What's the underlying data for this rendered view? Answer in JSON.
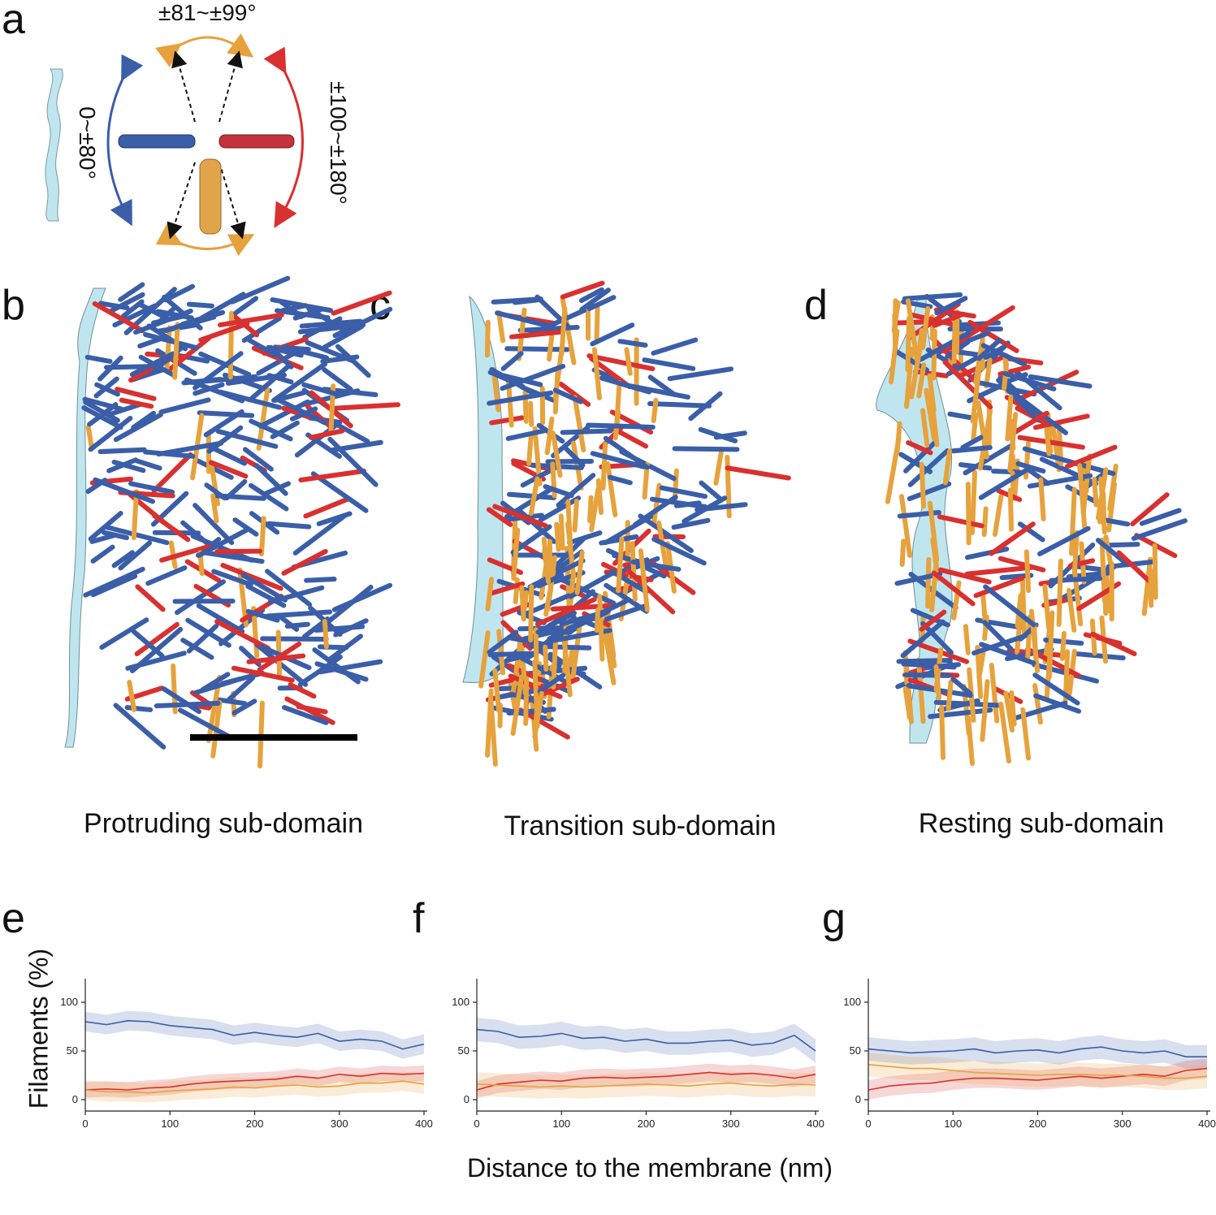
{
  "panels": {
    "a": "a",
    "b": "b",
    "c": "c",
    "d": "d",
    "e": "e",
    "f": "f",
    "g": "g"
  },
  "diagram": {
    "angle_top": "±81~±99°",
    "angle_left": "0~±80°",
    "angle_right": "±100~±180°"
  },
  "subdomains": {
    "b_title": "Protruding sub-domain",
    "c_title": "Transition sub-domain",
    "d_title": "Resting sub-domain"
  },
  "colors": {
    "blue": "#3a5ea8",
    "red": "#d93030",
    "orange": "#e6a23c",
    "membrane": "#bfe6ef"
  },
  "axes": {
    "y_title": "Filaments (%)",
    "x_title": "Distance to the membrane (nm)",
    "x_ticks": [
      "0",
      "100",
      "200",
      "300",
      "400"
    ],
    "y_ticks": [
      "0",
      "50",
      "100"
    ]
  },
  "chart_data": [
    {
      "type": "line",
      "panel": "e",
      "x": [
        0,
        25,
        50,
        75,
        100,
        125,
        150,
        175,
        200,
        225,
        250,
        275,
        300,
        325,
        350,
        375,
        400
      ],
      "xlim": [
        0,
        400
      ],
      "ylim": [
        -5,
        120
      ],
      "series": [
        {
          "color": "blue",
          "values": [
            80,
            77,
            81,
            80,
            76,
            74,
            72,
            66,
            69,
            66,
            64,
            68,
            60,
            62,
            60,
            52,
            57
          ],
          "band": 10
        },
        {
          "color": "red",
          "values": [
            10,
            11,
            10,
            12,
            13,
            16,
            18,
            19,
            20,
            21,
            24,
            22,
            26,
            24,
            27,
            26,
            27
          ],
          "band": 8
        },
        {
          "color": "orange",
          "values": [
            10,
            8,
            8,
            7,
            9,
            10,
            11,
            13,
            12,
            14,
            15,
            13,
            14,
            17,
            17,
            19,
            16
          ],
          "band": 10
        }
      ]
    },
    {
      "type": "line",
      "panel": "f",
      "x": [
        0,
        25,
        50,
        75,
        100,
        125,
        150,
        175,
        200,
        225,
        250,
        275,
        300,
        325,
        350,
        375,
        400
      ],
      "xlim": [
        0,
        400
      ],
      "ylim": [
        -5,
        120
      ],
      "series": [
        {
          "color": "blue",
          "values": [
            72,
            70,
            64,
            65,
            68,
            63,
            64,
            60,
            62,
            58,
            58,
            60,
            61,
            56,
            58,
            66,
            50
          ],
          "band": 12
        },
        {
          "color": "red",
          "values": [
            10,
            16,
            18,
            20,
            19,
            22,
            23,
            22,
            23,
            24,
            26,
            28,
            26,
            27,
            25,
            22,
            26
          ],
          "band": 9
        },
        {
          "color": "orange",
          "values": [
            16,
            15,
            14,
            13,
            14,
            13,
            14,
            15,
            16,
            15,
            14,
            16,
            17,
            15,
            14,
            16,
            15
          ],
          "band": 12
        }
      ]
    },
    {
      "type": "line",
      "panel": "g",
      "x": [
        0,
        25,
        50,
        75,
        100,
        125,
        150,
        175,
        200,
        225,
        250,
        275,
        300,
        325,
        350,
        375,
        400
      ],
      "xlim": [
        0,
        400
      ],
      "ylim": [
        -5,
        120
      ],
      "series": [
        {
          "color": "blue",
          "values": [
            52,
            50,
            48,
            49,
            50,
            52,
            48,
            50,
            51,
            48,
            52,
            54,
            50,
            48,
            50,
            44,
            44
          ],
          "band": 12
        },
        {
          "color": "red",
          "values": [
            10,
            14,
            16,
            17,
            20,
            22,
            22,
            21,
            20,
            22,
            24,
            22,
            24,
            26,
            24,
            30,
            32
          ],
          "band": 10
        },
        {
          "color": "orange",
          "values": [
            36,
            34,
            32,
            32,
            30,
            28,
            27,
            26,
            25,
            26,
            26,
            25,
            25,
            24,
            22,
            22,
            24
          ],
          "band": 12
        }
      ]
    }
  ]
}
